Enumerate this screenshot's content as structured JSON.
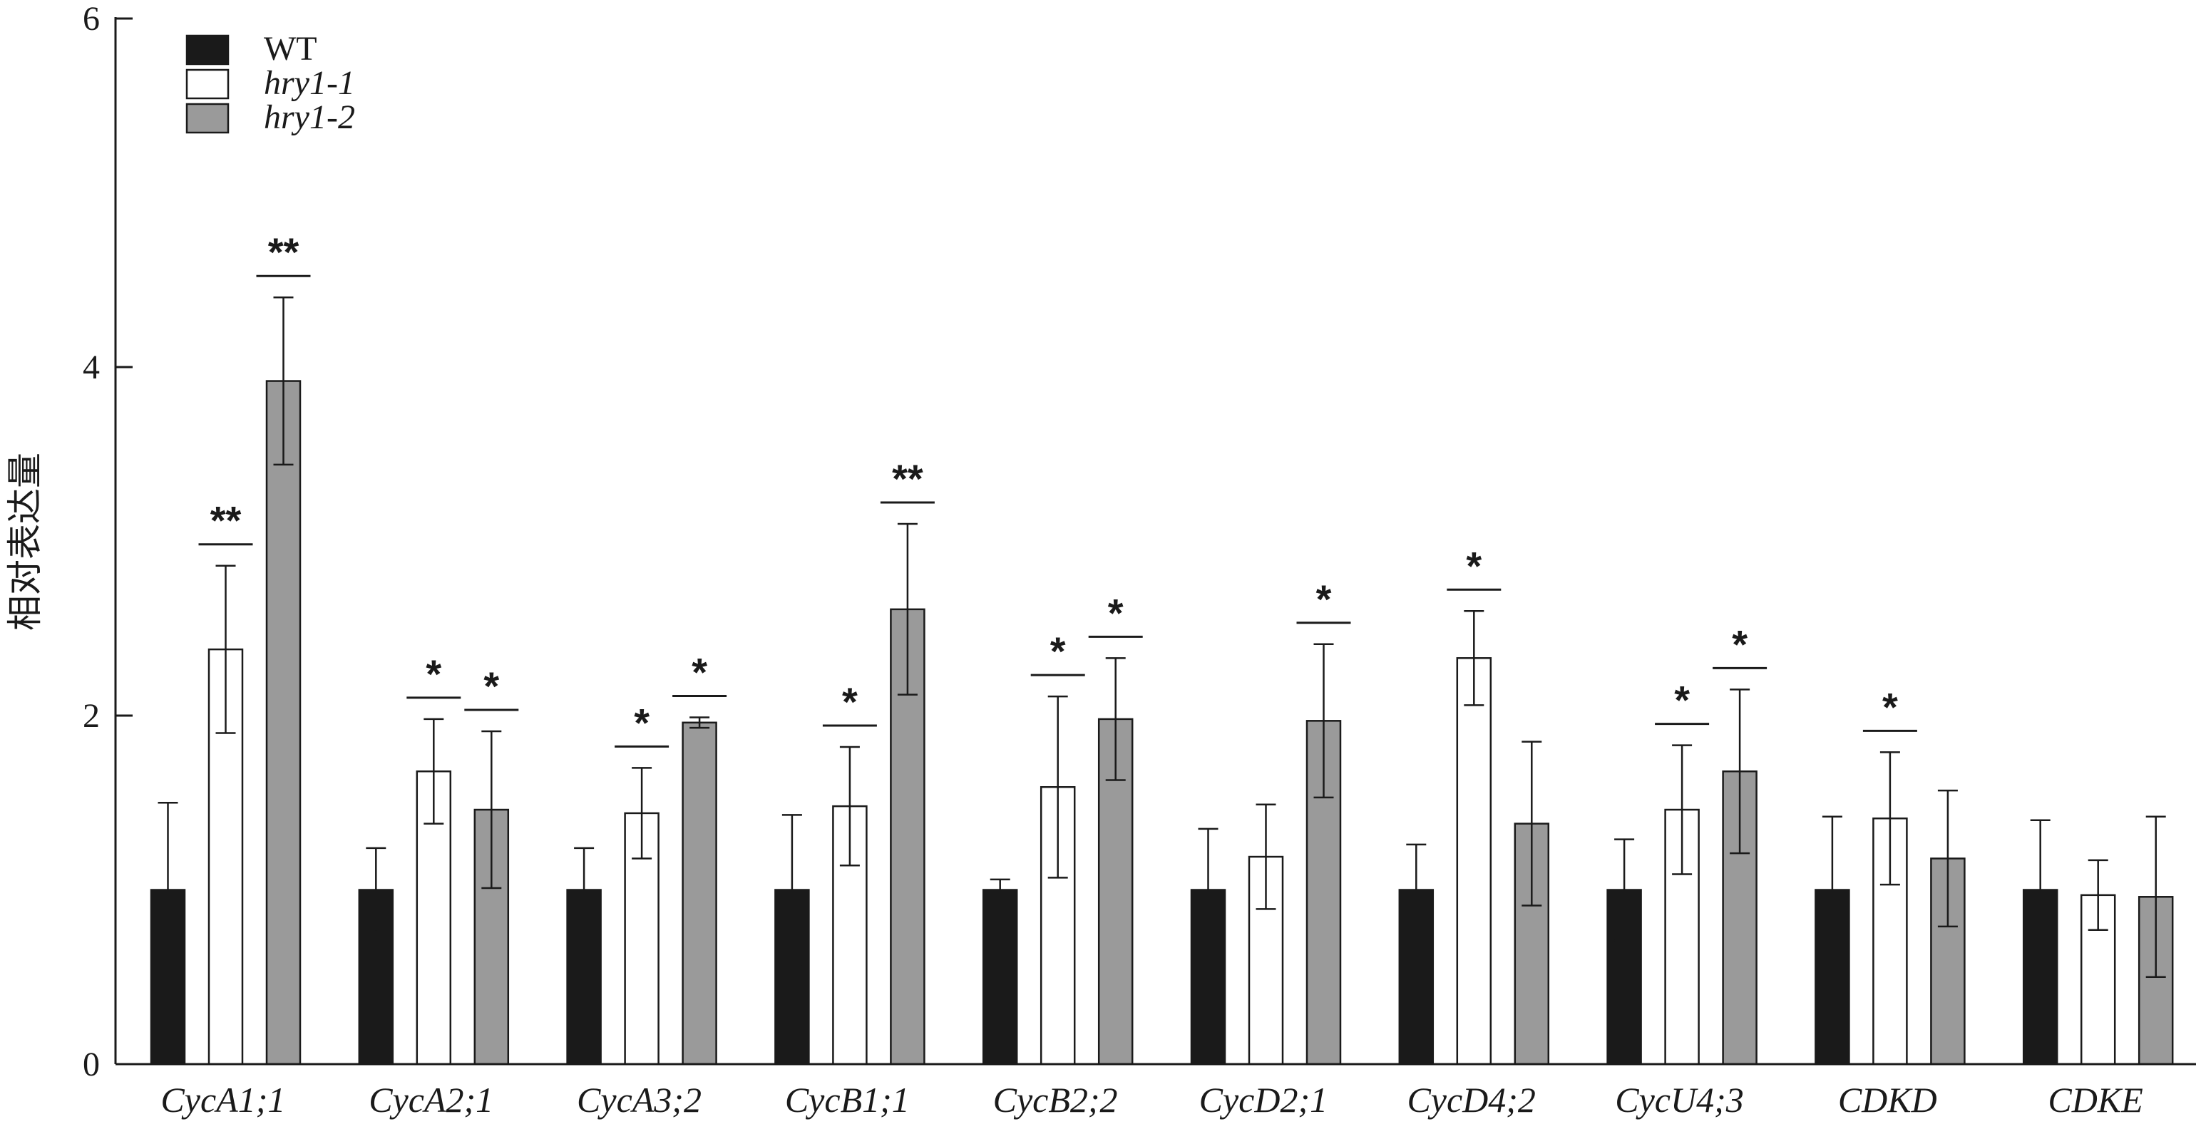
{
  "chart_data": {
    "type": "bar",
    "ylabel": "相对表达量",
    "xlabel": "",
    "ylim": [
      0,
      6
    ],
    "yticks": [
      0,
      2,
      4,
      6
    ],
    "categories": [
      "CycA1;1",
      "CycA2;1",
      "CycA3;2",
      "CycB1;1",
      "CycB2;2",
      "CycD2;1",
      "CycD4;2",
      "CycU4;3",
      "CDKD",
      "CDKE"
    ],
    "series": [
      {
        "name": "WT",
        "color": "#1a1a1a",
        "italic": false,
        "values": [
          1.0,
          1.0,
          1.0,
          1.0,
          1.0,
          1.0,
          1.0,
          1.0,
          1.0,
          1.0
        ],
        "errors": [
          0.5,
          0.24,
          0.24,
          0.43,
          0.06,
          0.35,
          0.26,
          0.29,
          0.42,
          0.4
        ],
        "significance": [
          "",
          "",
          "",
          "",
          "",
          "",
          "",
          "",
          "",
          ""
        ]
      },
      {
        "name": "hry1-1",
        "color": "#ffffff",
        "italic": true,
        "values": [
          2.38,
          1.68,
          1.44,
          1.48,
          1.59,
          1.19,
          2.33,
          1.46,
          1.41,
          0.97
        ],
        "errors": [
          0.48,
          0.3,
          0.26,
          0.34,
          0.52,
          0.3,
          0.27,
          0.37,
          0.38,
          0.2
        ],
        "significance": [
          "**",
          "*",
          "*",
          "*",
          "*",
          "",
          "*",
          "*",
          "*",
          ""
        ]
      },
      {
        "name": "hry1-2",
        "color": "#9a9a9a",
        "italic": true,
        "values": [
          3.92,
          1.46,
          1.96,
          2.61,
          1.98,
          1.97,
          1.38,
          1.68,
          1.18,
          0.96
        ],
        "errors": [
          0.48,
          0.45,
          0.03,
          0.49,
          0.35,
          0.44,
          0.47,
          0.47,
          0.39,
          0.46
        ],
        "significance": [
          "**",
          "*",
          "*",
          "**",
          "*",
          "*",
          "",
          "*",
          "",
          ""
        ]
      }
    ],
    "legend": {
      "placement": "top-left"
    },
    "grid": false
  }
}
